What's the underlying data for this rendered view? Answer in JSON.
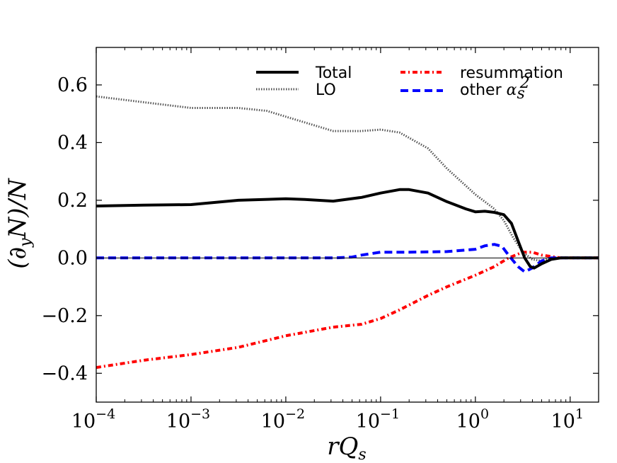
{
  "chart_data": {
    "type": "line",
    "xscale": "log",
    "xlim_log10": [
      -4,
      1.3
    ],
    "ylim": [
      -0.5,
      0.73
    ],
    "xlabel": "rQ_s",
    "ylabel": "(∂_y N)/N",
    "x_ticks": [
      {
        "log10": -4,
        "base": "10",
        "exp": "−4"
      },
      {
        "log10": -3,
        "base": "10",
        "exp": "−3"
      },
      {
        "log10": -2,
        "base": "10",
        "exp": "−2"
      },
      {
        "log10": -1,
        "base": "10",
        "exp": "−1"
      },
      {
        "log10": 0,
        "base": "10",
        "exp": "0"
      },
      {
        "log10": 1,
        "base": "10",
        "exp": "1"
      }
    ],
    "y_ticks": [
      {
        "value": 0.6,
        "label": "0.6"
      },
      {
        "value": 0.4,
        "label": "0.4"
      },
      {
        "value": 0.2,
        "label": "0.2"
      },
      {
        "value": 0.0,
        "label": "0.0"
      },
      {
        "value": -0.2,
        "label": "−0.2"
      },
      {
        "value": -0.4,
        "label": "−0.4"
      }
    ],
    "legend": {
      "placement": "top-right",
      "entries": [
        {
          "name": "Total",
          "series": "total"
        },
        {
          "name": "LO",
          "series": "lo"
        },
        {
          "name": "resummation",
          "series": "resummation"
        },
        {
          "name": "other",
          "math": "α",
          "sub": "s",
          "sup": "2",
          "series": "other"
        }
      ]
    },
    "series": [
      {
        "id": "total",
        "name": "Total",
        "color": "#000000",
        "style": "solid",
        "points": [
          [
            -4.0,
            0.18
          ],
          [
            -3.5,
            0.183
          ],
          [
            -3.0,
            0.185
          ],
          [
            -2.5,
            0.2
          ],
          [
            -2.0,
            0.205
          ],
          [
            -1.8,
            0.203
          ],
          [
            -1.5,
            0.197
          ],
          [
            -1.2,
            0.21
          ],
          [
            -1.0,
            0.225
          ],
          [
            -0.8,
            0.237
          ],
          [
            -0.7,
            0.237
          ],
          [
            -0.5,
            0.225
          ],
          [
            -0.3,
            0.195
          ],
          [
            -0.1,
            0.17
          ],
          [
            0.0,
            0.16
          ],
          [
            0.1,
            0.162
          ],
          [
            0.2,
            0.158
          ],
          [
            0.3,
            0.15
          ],
          [
            0.38,
            0.12
          ],
          [
            0.45,
            0.06
          ],
          [
            0.52,
            0.0
          ],
          [
            0.58,
            -0.03
          ],
          [
            0.62,
            -0.035
          ],
          [
            0.7,
            -0.02
          ],
          [
            0.8,
            -0.005
          ],
          [
            0.9,
            0.0
          ],
          [
            1.0,
            0.0
          ],
          [
            1.3,
            0.0
          ]
        ]
      },
      {
        "id": "lo",
        "name": "LO",
        "color": "#555555",
        "style": "dotted",
        "points": [
          [
            -4.0,
            0.56
          ],
          [
            -3.5,
            0.54
          ],
          [
            -3.0,
            0.52
          ],
          [
            -2.5,
            0.52
          ],
          [
            -2.2,
            0.51
          ],
          [
            -2.0,
            0.49
          ],
          [
            -1.5,
            0.44
          ],
          [
            -1.2,
            0.44
          ],
          [
            -1.0,
            0.445
          ],
          [
            -0.8,
            0.435
          ],
          [
            -0.5,
            0.38
          ],
          [
            -0.3,
            0.31
          ],
          [
            -0.1,
            0.25
          ],
          [
            0.0,
            0.22
          ],
          [
            0.1,
            0.195
          ],
          [
            0.2,
            0.17
          ],
          [
            0.3,
            0.13
          ],
          [
            0.4,
            0.07
          ],
          [
            0.5,
            0.02
          ],
          [
            0.6,
            -0.005
          ],
          [
            0.7,
            -0.01
          ],
          [
            0.8,
            0.0
          ],
          [
            1.0,
            0.0
          ],
          [
            1.3,
            0.0
          ]
        ]
      },
      {
        "id": "resummation",
        "name": "resummation",
        "color": "#ff0000",
        "style": "dashdot",
        "points": [
          [
            -4.0,
            -0.38
          ],
          [
            -3.5,
            -0.355
          ],
          [
            -3.0,
            -0.335
          ],
          [
            -2.5,
            -0.31
          ],
          [
            -2.0,
            -0.27
          ],
          [
            -1.5,
            -0.24
          ],
          [
            -1.2,
            -0.23
          ],
          [
            -1.0,
            -0.21
          ],
          [
            -0.8,
            -0.18
          ],
          [
            -0.5,
            -0.13
          ],
          [
            -0.3,
            -0.1
          ],
          [
            0.0,
            -0.06
          ],
          [
            0.2,
            -0.03
          ],
          [
            0.35,
            0.0
          ],
          [
            0.5,
            0.02
          ],
          [
            0.6,
            0.02
          ],
          [
            0.7,
            0.01
          ],
          [
            0.8,
            0.005
          ],
          [
            0.9,
            0.0
          ],
          [
            1.3,
            0.0
          ]
        ]
      },
      {
        "id": "other",
        "name": "other",
        "color": "#0000ff",
        "style": "dashed",
        "points": [
          [
            -4.0,
            0.0
          ],
          [
            -3.0,
            0.0
          ],
          [
            -2.0,
            0.0
          ],
          [
            -1.5,
            0.0
          ],
          [
            -1.3,
            0.003
          ],
          [
            -1.2,
            0.01
          ],
          [
            -1.0,
            0.02
          ],
          [
            -0.7,
            0.02
          ],
          [
            -0.3,
            0.022
          ],
          [
            0.0,
            0.03
          ],
          [
            0.1,
            0.042
          ],
          [
            0.2,
            0.047
          ],
          [
            0.28,
            0.04
          ],
          [
            0.35,
            0.01
          ],
          [
            0.45,
            -0.03
          ],
          [
            0.52,
            -0.048
          ],
          [
            0.6,
            -0.035
          ],
          [
            0.7,
            -0.01
          ],
          [
            0.8,
            0.0
          ],
          [
            1.3,
            0.0
          ]
        ]
      }
    ]
  }
}
